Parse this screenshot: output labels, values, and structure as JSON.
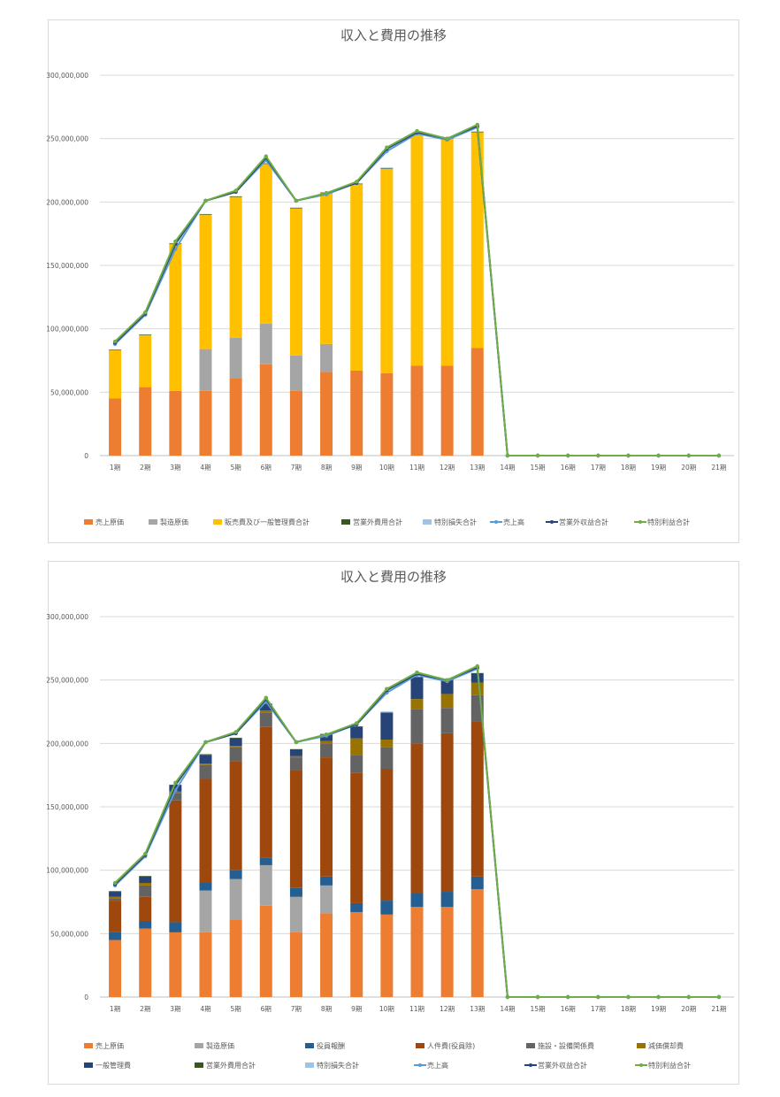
{
  "charts": [
    {
      "title": "収入と費用の推移",
      "periods": [
        "1期",
        "2期",
        "3期",
        "4期",
        "5期",
        "6期",
        "7期",
        "8期",
        "9期",
        "10期",
        "11期",
        "12期",
        "13期",
        "14期",
        "15期",
        "16期",
        "17期",
        "18期",
        "19期",
        "20期",
        "21期"
      ],
      "y_ticks": [
        "0",
        "50,000,000",
        "100,000,000",
        "150,000,000",
        "200,000,000",
        "250,000,000",
        "300,000,000"
      ],
      "legend": [
        "売上原価",
        "製造原価",
        "販売費及び一般管理費合計",
        "営業外費用合計",
        "特別損失合計",
        "売上高",
        "営業外収益合計",
        "特別利益合計"
      ]
    },
    {
      "title": "収入と費用の推移",
      "periods": [
        "1期",
        "2期",
        "3期",
        "4期",
        "5期",
        "6期",
        "7期",
        "8期",
        "9期",
        "10期",
        "11期",
        "12期",
        "13期",
        "14期",
        "15期",
        "16期",
        "17期",
        "18期",
        "19期",
        "20期",
        "21期"
      ],
      "y_ticks": [
        "0",
        "50,000,000",
        "100,000,000",
        "150,000,000",
        "200,000,000",
        "250,000,000",
        "300,000,000"
      ],
      "legend": [
        "売上原価",
        "製造原価",
        "役員報酬",
        "人件費(役員除)",
        "施設・設備関係費",
        "減価償却費",
        "一般管理費",
        "営業外費用合計",
        "特別損失合計",
        "売上高",
        "営業外収益合計",
        "特別利益合計"
      ]
    }
  ],
  "chart_data": [
    {
      "type": "bar",
      "stacked": true,
      "title": "収入と費用の推移",
      "categories": [
        "1期",
        "2期",
        "3期",
        "4期",
        "5期",
        "6期",
        "7期",
        "8期",
        "9期",
        "10期",
        "11期",
        "12期",
        "13期",
        "14期",
        "15期",
        "16期",
        "17期",
        "18期",
        "19期",
        "20期",
        "21期"
      ],
      "ylim": [
        0,
        300000000
      ],
      "legend_position": "bottom",
      "grid": true,
      "bar_series": [
        {
          "name": "売上原価",
          "color": "#ED7D31",
          "values": [
            45000000,
            54000000,
            51000000,
            51000000,
            61000000,
            72000000,
            51000000,
            66000000,
            67000000,
            65000000,
            71000000,
            71000000,
            85000000,
            0,
            0,
            0,
            0,
            0,
            0,
            0,
            0
          ]
        },
        {
          "name": "製造原価",
          "color": "#A5A5A5",
          "values": [
            0,
            0,
            0,
            33000000,
            32000000,
            32000000,
            28000000,
            22000000,
            0,
            0,
            0,
            0,
            0,
            0,
            0,
            0,
            0,
            0,
            0,
            0,
            0
          ]
        },
        {
          "name": "販売費及び一般管理費合計",
          "color": "#FFC000",
          "values": [
            38000000,
            41000000,
            116000000,
            106000000,
            111000000,
            126000000,
            116000000,
            119000000,
            147000000,
            161000000,
            182000000,
            179000000,
            170000000,
            0,
            0,
            0,
            0,
            0,
            0,
            0,
            0
          ]
        },
        {
          "name": "営業外費用合計",
          "color": "#375623",
          "values": [
            500000,
            500000,
            500000,
            500000,
            500000,
            500000,
            500000,
            500000,
            500000,
            500000,
            500000,
            500000,
            500000,
            0,
            0,
            0,
            0,
            0,
            0,
            0,
            0
          ]
        },
        {
          "name": "特別損失合計",
          "color": "#9DC3E6",
          "values": [
            0,
            0,
            0,
            0,
            0,
            0,
            0,
            0,
            0,
            700000,
            0,
            0,
            0,
            0,
            0,
            0,
            0,
            0,
            0,
            0,
            0
          ]
        }
      ],
      "line_series": [
        {
          "name": "売上高",
          "color": "#5B9BD5",
          "values": [
            88000000,
            111000000,
            163000000,
            201000000,
            208000000,
            233000000,
            201000000,
            206000000,
            215000000,
            240000000,
            254000000,
            249000000,
            259000000,
            0,
            0,
            0,
            0,
            0,
            0,
            0,
            0
          ]
        },
        {
          "name": "営業外収益合計",
          "color": "#264478",
          "values": [
            89000000,
            112000000,
            167000000,
            201000000,
            208000000,
            235000000,
            201000000,
            207000000,
            215000000,
            242000000,
            255000000,
            250000000,
            260000000,
            0,
            0,
            0,
            0,
            0,
            0,
            0,
            0
          ]
        },
        {
          "name": "特別利益合計",
          "color": "#70AD47",
          "values": [
            90000000,
            113000000,
            169000000,
            201000000,
            209000000,
            236000000,
            201000000,
            207000000,
            216000000,
            243000000,
            256000000,
            250000000,
            261000000,
            0,
            0,
            0,
            0,
            0,
            0,
            0,
            0
          ]
        }
      ]
    },
    {
      "type": "bar",
      "stacked": true,
      "title": "収入と費用の推移",
      "categories": [
        "1期",
        "2期",
        "3期",
        "4期",
        "5期",
        "6期",
        "7期",
        "8期",
        "9期",
        "10期",
        "11期",
        "12期",
        "13期",
        "14期",
        "15期",
        "16期",
        "17期",
        "18期",
        "19期",
        "20期",
        "21期"
      ],
      "ylim": [
        0,
        300000000
      ],
      "legend_position": "bottom",
      "grid": true,
      "bar_series": [
        {
          "name": "売上原価",
          "color": "#ED7D31",
          "values": [
            45000000,
            54000000,
            51000000,
            51000000,
            61000000,
            72000000,
            51000000,
            66000000,
            67000000,
            65000000,
            71000000,
            71000000,
            85000000,
            0,
            0,
            0,
            0,
            0,
            0,
            0,
            0
          ]
        },
        {
          "name": "製造原価",
          "color": "#A5A5A5",
          "values": [
            0,
            0,
            0,
            33000000,
            32000000,
            32000000,
            28000000,
            22000000,
            0,
            0,
            0,
            0,
            0,
            0,
            0,
            0,
            0,
            0,
            0,
            0,
            0
          ]
        },
        {
          "name": "役員報酬",
          "color": "#255E91",
          "values": [
            6000000,
            6000000,
            8000000,
            6000000,
            7000000,
            6000000,
            7000000,
            7000000,
            7000000,
            11000000,
            11000000,
            12000000,
            10000000,
            0,
            0,
            0,
            0,
            0,
            0,
            0,
            0
          ]
        },
        {
          "name": "人件費(役員除)",
          "color": "#9E480E",
          "values": [
            25000000,
            19000000,
            96000000,
            82000000,
            86000000,
            103000000,
            93000000,
            94000000,
            103000000,
            104000000,
            118000000,
            125000000,
            122000000,
            0,
            0,
            0,
            0,
            0,
            0,
            0,
            0
          ]
        },
        {
          "name": "施設・設備関係費",
          "color": "#636363",
          "values": [
            2000000,
            9000000,
            6000000,
            11000000,
            11000000,
            11000000,
            10000000,
            11000000,
            14000000,
            17000000,
            27000000,
            20000000,
            21000000,
            0,
            0,
            0,
            0,
            0,
            0,
            0,
            0
          ]
        },
        {
          "name": "減価償却費",
          "color": "#997300",
          "values": [
            1000000,
            2000000,
            1000000,
            1000000,
            1000000,
            2000000,
            1000000,
            2000000,
            13000000,
            6000000,
            8000000,
            11000000,
            10000000,
            0,
            0,
            0,
            0,
            0,
            0,
            0,
            0
          ]
        },
        {
          "name": "一般管理費",
          "color": "#264478",
          "values": [
            4000000,
            5000000,
            5000000,
            7000000,
            6000000,
            5000000,
            5000000,
            5000000,
            9000000,
            21000000,
            17000000,
            11000000,
            7000000,
            0,
            0,
            0,
            0,
            0,
            0,
            0,
            0
          ]
        },
        {
          "name": "営業外費用合計",
          "color": "#375623",
          "values": [
            500000,
            500000,
            500000,
            500000,
            500000,
            500000,
            500000,
            500000,
            500000,
            500000,
            500000,
            500000,
            500000,
            0,
            0,
            0,
            0,
            0,
            0,
            0,
            0
          ]
        },
        {
          "name": "特別損失合計",
          "color": "#9DC3E6",
          "values": [
            0,
            0,
            0,
            0,
            0,
            0,
            0,
            0,
            0,
            700000,
            0,
            0,
            0,
            0,
            0,
            0,
            0,
            0,
            0,
            0,
            0
          ]
        }
      ],
      "line_series": [
        {
          "name": "売上高",
          "color": "#5B9BD5",
          "values": [
            88000000,
            111000000,
            163000000,
            201000000,
            208000000,
            233000000,
            201000000,
            206000000,
            215000000,
            240000000,
            254000000,
            249000000,
            259000000,
            0,
            0,
            0,
            0,
            0,
            0,
            0,
            0
          ]
        },
        {
          "name": "営業外収益合計",
          "color": "#264478",
          "values": [
            89000000,
            112000000,
            167000000,
            201000000,
            208000000,
            235000000,
            201000000,
            207000000,
            215000000,
            242000000,
            255000000,
            250000000,
            260000000,
            0,
            0,
            0,
            0,
            0,
            0,
            0,
            0
          ]
        },
        {
          "name": "特別利益合計",
          "color": "#70AD47",
          "values": [
            90000000,
            113000000,
            169000000,
            201000000,
            209000000,
            236000000,
            201000000,
            207000000,
            216000000,
            243000000,
            256000000,
            250000000,
            261000000,
            0,
            0,
            0,
            0,
            0,
            0,
            0,
            0
          ]
        }
      ]
    }
  ]
}
